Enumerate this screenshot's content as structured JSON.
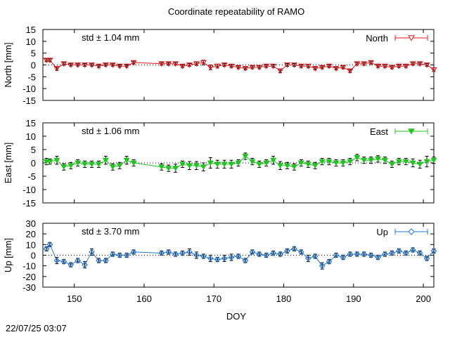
{
  "title": "Coordinate repeatability of RAMO",
  "timestamp": "22/07/25 03:07",
  "chart_data": [
    {
      "type": "line",
      "panel": "north",
      "ylabel": "North [mm]",
      "ylim": [
        -15,
        15
      ],
      "yticks": [
        "15",
        "10",
        "5",
        "0",
        "-5",
        "-10",
        "-15"
      ],
      "xlim": [
        145.5,
        201.5
      ],
      "legend": "North",
      "legend_marker": "triangle-down-open",
      "std_label": "std ± 1.04 mm",
      "color": "#e41a1c",
      "x": [
        146,
        146.5,
        147.5,
        148.5,
        149.5,
        150.5,
        151.5,
        152.5,
        153.5,
        154.5,
        155.5,
        156.5,
        157.5,
        158.5,
        162.5,
        163.5,
        164.5,
        165.5,
        166.5,
        167.5,
        168.5,
        169.5,
        170.5,
        171.5,
        172.5,
        173.5,
        174.5,
        175.5,
        176.5,
        177.5,
        178.5,
        179.5,
        180.5,
        181.5,
        182.5,
        183.5,
        184.5,
        185.5,
        186.5,
        187.5,
        188.5,
        189.5,
        190.5,
        191.5,
        192.5,
        193.5,
        194.5,
        195.5,
        196.5,
        197.5,
        198.5,
        199.5,
        200.5,
        201.5
      ],
      "y": [
        2.0,
        2.0,
        -1.5,
        0.5,
        0.0,
        0.0,
        0.0,
        0.0,
        -0.5,
        0.0,
        0.0,
        -0.5,
        -0.5,
        1.0,
        0.5,
        0.5,
        0.5,
        -0.5,
        0.0,
        0.5,
        1.0,
        -1.0,
        -0.5,
        0.0,
        -0.5,
        -1.0,
        -1.5,
        -1.0,
        -1.0,
        -0.5,
        -0.5,
        -2.5,
        0.0,
        0.0,
        -0.5,
        -0.5,
        -1.5,
        -1.0,
        -0.5,
        -1.5,
        -1.0,
        -2.5,
        0.5,
        0.5,
        1.0,
        -0.5,
        -0.5,
        -1.0,
        -0.5,
        -0.5,
        0.5,
        0.5,
        0.0,
        -2.0
      ],
      "yerr": [
        0.6,
        0.6,
        0.8,
        0.6,
        0.5,
        0.5,
        0.6,
        0.5,
        0.6,
        0.5,
        0.5,
        0.5,
        0.5,
        0.6,
        0.6,
        0.6,
        0.6,
        0.6,
        0.6,
        0.7,
        1.0,
        1.0,
        0.8,
        0.6,
        0.6,
        0.6,
        0.6,
        0.6,
        0.6,
        0.6,
        0.6,
        0.8,
        0.6,
        0.6,
        0.6,
        0.7,
        0.6,
        0.6,
        0.6,
        0.6,
        0.6,
        0.7,
        0.6,
        0.6,
        0.6,
        0.6,
        0.6,
        0.6,
        0.6,
        0.6,
        0.6,
        0.6,
        0.6,
        0.8
      ]
    },
    {
      "type": "line",
      "panel": "east",
      "ylabel": "East [mm]",
      "ylim": [
        -15,
        15
      ],
      "yticks": [
        "15",
        "10",
        "5",
        "0",
        "-5",
        "-10",
        "-15"
      ],
      "xlim": [
        145.5,
        201.5
      ],
      "legend": "East",
      "legend_marker": "triangle-down-filled",
      "std_label": "std ± 1.06 mm",
      "color": "#22c222",
      "x": [
        146,
        146.5,
        147.5,
        148.5,
        149.5,
        150.5,
        151.5,
        152.5,
        153.5,
        154.5,
        155.5,
        156.5,
        157.5,
        158.5,
        162.5,
        163.5,
        164.5,
        165.5,
        166.5,
        167.5,
        168.5,
        169.5,
        170.5,
        171.5,
        172.5,
        173.5,
        174.5,
        175.5,
        176.5,
        177.5,
        178.5,
        179.5,
        180.5,
        181.5,
        182.5,
        183.5,
        184.5,
        185.5,
        186.5,
        187.5,
        188.5,
        189.5,
        190.5,
        191.5,
        192.5,
        193.5,
        194.5,
        195.5,
        196.5,
        197.5,
        198.5,
        199.5,
        200.5,
        201.5
      ],
      "y": [
        0.5,
        0.5,
        1.0,
        -1.5,
        -1.0,
        0.0,
        -0.5,
        -0.5,
        -0.5,
        1.0,
        -1.5,
        -1.0,
        1.0,
        0.0,
        -1.5,
        -2.0,
        -2.0,
        -0.5,
        -1.0,
        -1.0,
        -1.5,
        0.0,
        -0.5,
        -0.5,
        -0.5,
        0.0,
        2.5,
        0.5,
        -0.5,
        0.0,
        1.0,
        -1.0,
        -1.0,
        -1.5,
        0.0,
        -0.5,
        -1.0,
        0.5,
        0.5,
        0.0,
        0.0,
        0.5,
        2.0,
        1.0,
        1.0,
        1.5,
        1.0,
        -0.5,
        0.5,
        0.5,
        0.0,
        -0.5,
        0.5,
        1.0
      ],
      "yerr": [
        1.2,
        1.0,
        1.5,
        1.2,
        1.2,
        1.2,
        1.2,
        1.2,
        1.2,
        1.5,
        1.2,
        1.2,
        1.5,
        1.2,
        1.2,
        1.2,
        1.5,
        1.2,
        1.5,
        1.5,
        1.5,
        2.0,
        1.5,
        1.5,
        1.5,
        1.2,
        1.2,
        1.2,
        1.2,
        1.2,
        1.5,
        1.5,
        1.2,
        1.2,
        1.2,
        1.2,
        1.2,
        1.2,
        1.2,
        1.2,
        1.2,
        1.2,
        1.2,
        1.2,
        1.2,
        1.2,
        1.2,
        1.2,
        1.2,
        1.2,
        1.5,
        1.5,
        2.0,
        1.2
      ]
    },
    {
      "type": "line",
      "panel": "up",
      "ylabel": "Up [mm]",
      "ylim": [
        -30,
        30
      ],
      "yticks": [
        "30",
        "20",
        "10",
        "0",
        "-10",
        "-20",
        "-30"
      ],
      "xlim": [
        145.5,
        201.5
      ],
      "xticks": [
        "150",
        "160",
        "170",
        "180",
        "190",
        "200"
      ],
      "xlabel": "DOY",
      "legend": "Up",
      "legend_marker": "diamond-open",
      "std_label": "std ± 3.70 mm",
      "color": "#1f77d4",
      "x": [
        146,
        146.5,
        147.5,
        148.5,
        149.5,
        150.5,
        151.5,
        152.5,
        153.5,
        154.5,
        155.5,
        156.5,
        157.5,
        158.5,
        162.5,
        163.5,
        164.5,
        165.5,
        166.5,
        167.5,
        168.5,
        169.5,
        170.5,
        171.5,
        172.5,
        173.5,
        174.5,
        175.5,
        176.5,
        177.5,
        178.5,
        179.5,
        180.5,
        181.5,
        182.5,
        183.5,
        184.5,
        185.5,
        186.5,
        187.5,
        188.5,
        189.5,
        190.5,
        191.5,
        192.5,
        193.5,
        194.5,
        195.5,
        196.5,
        197.5,
        198.5,
        199.5,
        200.5,
        201.5
      ],
      "y": [
        6,
        10,
        -5,
        -6,
        -9,
        -5,
        -9,
        3,
        -5,
        -5,
        1,
        0,
        0,
        3,
        2,
        3,
        1,
        2,
        3,
        0,
        -1,
        -3,
        -4,
        -3,
        -2,
        -1,
        -5,
        3,
        1,
        0,
        2,
        1,
        4,
        6,
        3,
        -3,
        -1,
        -10,
        -6,
        0,
        -2,
        1,
        1,
        1,
        0,
        -2,
        1,
        2,
        4,
        2,
        5,
        2,
        -3,
        4
      ],
      "yerr": [
        2,
        2,
        3,
        2,
        2,
        2,
        3,
        3,
        2,
        2,
        2,
        2,
        2,
        2,
        2,
        2,
        2,
        2,
        3,
        3,
        2,
        3,
        2,
        3,
        3,
        2,
        2,
        2,
        2,
        2,
        2,
        2,
        2,
        2,
        2,
        3,
        2,
        3,
        2,
        2,
        2,
        2,
        2,
        2,
        2,
        2,
        2,
        2,
        2,
        2,
        2,
        2,
        2,
        2
      ]
    }
  ]
}
